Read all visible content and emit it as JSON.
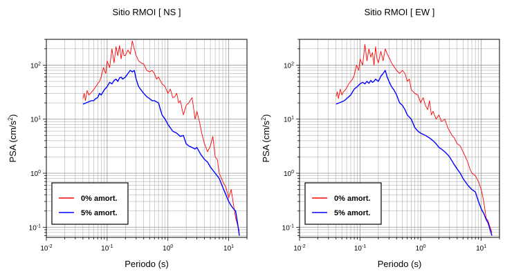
{
  "chart_data": [
    {
      "type": "line",
      "title": "Sitio RMOI [ NS ]",
      "xlabel": "Periodo (s)",
      "ylabel": "PSA (cm/s2)",
      "ylabel_main": "PSA (cm/s",
      "ylabel_sup": "2",
      "ylabel_close": ")",
      "xscale": "log",
      "yscale": "log",
      "xlim": [
        0.01,
        20
      ],
      "ylim": [
        0.065,
        300
      ],
      "grid": true,
      "legend_position": "bottom-left",
      "x_ticks": [
        {
          "value": 0.01,
          "base": "10",
          "exp": "-2"
        },
        {
          "value": 0.1,
          "base": "10",
          "exp": "-1"
        },
        {
          "value": 1,
          "base": "10",
          "exp": "0"
        },
        {
          "value": 10,
          "base": "10",
          "exp": "1"
        }
      ],
      "y_ticks": [
        {
          "value": 0.1,
          "base": "10",
          "exp": "-1"
        },
        {
          "value": 1,
          "base": "10",
          "exp": "0"
        },
        {
          "value": 10,
          "base": "10",
          "exp": "1"
        },
        {
          "value": 100,
          "base": "10",
          "exp": "2"
        }
      ],
      "series": [
        {
          "name": "0% amort.",
          "color": "#ff0000",
          "x": [
            0.04,
            0.042,
            0.044,
            0.047,
            0.05,
            0.053,
            0.056,
            0.06,
            0.065,
            0.07,
            0.075,
            0.08,
            0.087,
            0.095,
            0.1,
            0.11,
            0.12,
            0.13,
            0.14,
            0.15,
            0.16,
            0.17,
            0.18,
            0.19,
            0.2,
            0.22,
            0.24,
            0.26,
            0.28,
            0.3,
            0.33,
            0.36,
            0.4,
            0.45,
            0.5,
            0.55,
            0.6,
            0.65,
            0.7,
            0.8,
            0.9,
            1.0,
            1.1,
            1.2,
            1.3,
            1.4,
            1.5,
            1.6,
            1.8,
            2.0,
            2.2,
            2.5,
            2.8,
            3.0,
            3.3,
            3.6,
            4.0,
            4.5,
            5.0,
            5.5,
            6.0,
            6.5,
            7.0,
            8.0,
            9.0,
            10.0,
            11.0,
            12.0,
            13.0,
            14.0,
            15.0
          ],
          "values": [
            24,
            30,
            22,
            34,
            28,
            30,
            32,
            35,
            40,
            45,
            50,
            60,
            90,
            70,
            120,
            90,
            200,
            110,
            220,
            150,
            230,
            130,
            200,
            150,
            150,
            190,
            160,
            280,
            200,
            150,
            120,
            110,
            105,
            80,
            75,
            80,
            70,
            55,
            60,
            45,
            40,
            30,
            36,
            25,
            26,
            30,
            20,
            22,
            12,
            18,
            20,
            25,
            10,
            14,
            9,
            5.5,
            3.5,
            2.5,
            3.2,
            4.8,
            2.0,
            1.8,
            1.0,
            0.7,
            0.55,
            0.35,
            0.5,
            0.26,
            0.15,
            0.11,
            0.085
          ]
        },
        {
          "name": "5% amort.",
          "color": "#0000ff",
          "x": [
            0.04,
            0.045,
            0.05,
            0.055,
            0.06,
            0.065,
            0.07,
            0.075,
            0.08,
            0.09,
            0.1,
            0.11,
            0.12,
            0.13,
            0.14,
            0.15,
            0.16,
            0.17,
            0.18,
            0.2,
            0.22,
            0.24,
            0.26,
            0.28,
            0.3,
            0.33,
            0.36,
            0.4,
            0.45,
            0.5,
            0.55,
            0.6,
            0.7,
            0.8,
            0.9,
            1.0,
            1.2,
            1.4,
            1.6,
            1.8,
            2.0,
            2.2,
            2.5,
            2.8,
            3.0,
            3.5,
            4.0,
            4.5,
            5.0,
            6.0,
            7.0,
            8.0,
            9.0,
            10.0,
            11.0,
            12.0,
            13.0,
            14.0,
            15.0
          ],
          "values": [
            19,
            20,
            21,
            22,
            22,
            24,
            25,
            30,
            28,
            35,
            40,
            48,
            45,
            52,
            55,
            50,
            58,
            60,
            55,
            60,
            70,
            80,
            75,
            80,
            55,
            40,
            35,
            30,
            26,
            24,
            22,
            22,
            20,
            12,
            10,
            8,
            6,
            5.5,
            4.8,
            5.0,
            3.5,
            3.2,
            3.0,
            2.8,
            3.0,
            2.2,
            1.8,
            1.6,
            1.3,
            1.0,
            0.8,
            0.55,
            0.4,
            0.3,
            0.25,
            0.22,
            0.2,
            0.12,
            0.07
          ]
        }
      ]
    },
    {
      "type": "line",
      "title": "Sitio RMOI [ EW ]",
      "xlabel": "Periodo (s)",
      "ylabel": "PSA (cm/s2)",
      "ylabel_main": "PSA (cm/s",
      "ylabel_sup": "2",
      "ylabel_close": ")",
      "xscale": "log",
      "yscale": "log",
      "xlim": [
        0.01,
        20
      ],
      "ylim": [
        0.065,
        300
      ],
      "grid": true,
      "legend_position": "bottom-left",
      "x_ticks": [
        {
          "value": 0.01,
          "base": "10",
          "exp": "-2"
        },
        {
          "value": 0.1,
          "base": "10",
          "exp": "-1"
        },
        {
          "value": 1,
          "base": "10",
          "exp": "0"
        },
        {
          "value": 10,
          "base": "10",
          "exp": "1"
        }
      ],
      "y_ticks": [
        {
          "value": 0.1,
          "base": "10",
          "exp": "-1"
        },
        {
          "value": 1,
          "base": "10",
          "exp": "0"
        },
        {
          "value": 10,
          "base": "10",
          "exp": "1"
        },
        {
          "value": 100,
          "base": "10",
          "exp": "2"
        }
      ],
      "series": [
        {
          "name": "0% amort.",
          "color": "#ff0000",
          "x": [
            0.04,
            0.042,
            0.044,
            0.047,
            0.05,
            0.053,
            0.056,
            0.06,
            0.065,
            0.07,
            0.075,
            0.08,
            0.087,
            0.095,
            0.1,
            0.11,
            0.12,
            0.13,
            0.14,
            0.15,
            0.16,
            0.17,
            0.18,
            0.19,
            0.2,
            0.22,
            0.24,
            0.26,
            0.28,
            0.3,
            0.33,
            0.36,
            0.4,
            0.45,
            0.5,
            0.55,
            0.6,
            0.65,
            0.7,
            0.8,
            0.9,
            1.0,
            1.1,
            1.2,
            1.3,
            1.4,
            1.5,
            1.6,
            1.8,
            2.0,
            2.2,
            2.5,
            2.8,
            3.0,
            3.3,
            3.6,
            4.0,
            4.5,
            5.0,
            5.5,
            6.0,
            6.5,
            7.0,
            8.0,
            9.0,
            10.0,
            11.0,
            12.0,
            13.0,
            14.0,
            15.0
          ],
          "values": [
            26,
            32,
            24,
            36,
            28,
            32,
            34,
            38,
            45,
            50,
            55,
            65,
            100,
            80,
            130,
            100,
            240,
            120,
            200,
            140,
            170,
            100,
            220,
            130,
            110,
            180,
            120,
            200,
            160,
            140,
            110,
            95,
            80,
            70,
            80,
            70,
            50,
            55,
            35,
            30,
            28,
            20,
            25,
            18,
            15,
            22,
            12,
            14,
            10,
            12,
            9,
            10,
            7,
            6,
            5,
            4.5,
            3.5,
            3.2,
            2.5,
            2.0,
            1.6,
            1.2,
            1.0,
            0.9,
            0.7,
            0.5,
            0.3,
            0.15,
            0.13,
            0.1,
            0.08
          ]
        },
        {
          "name": "5% amort.",
          "color": "#0000ff",
          "x": [
            0.04,
            0.045,
            0.05,
            0.055,
            0.06,
            0.065,
            0.07,
            0.075,
            0.08,
            0.09,
            0.1,
            0.11,
            0.12,
            0.13,
            0.14,
            0.15,
            0.16,
            0.17,
            0.18,
            0.2,
            0.22,
            0.24,
            0.26,
            0.28,
            0.3,
            0.33,
            0.36,
            0.4,
            0.45,
            0.5,
            0.55,
            0.6,
            0.7,
            0.8,
            0.9,
            1.0,
            1.2,
            1.4,
            1.6,
            1.8,
            2.0,
            2.2,
            2.5,
            2.8,
            3.0,
            3.5,
            4.0,
            4.5,
            5.0,
            6.0,
            7.0,
            8.0,
            9.0,
            10.0,
            11.0,
            12.0,
            13.0,
            14.0,
            15.0
          ],
          "values": [
            19,
            20,
            21,
            22,
            24,
            26,
            28,
            32,
            36,
            40,
            45,
            48,
            45,
            50,
            46,
            52,
            48,
            50,
            55,
            50,
            62,
            70,
            80,
            60,
            50,
            40,
            35,
            28,
            20,
            18,
            15,
            12,
            10,
            7,
            6,
            5.5,
            5,
            4.5,
            4.0,
            3.5,
            3.0,
            2.8,
            2.5,
            2.2,
            2.0,
            1.5,
            1.2,
            1.0,
            0.8,
            0.6,
            0.5,
            0.45,
            0.3,
            0.22,
            0.18,
            0.14,
            0.12,
            0.09,
            0.07
          ]
        }
      ]
    }
  ]
}
